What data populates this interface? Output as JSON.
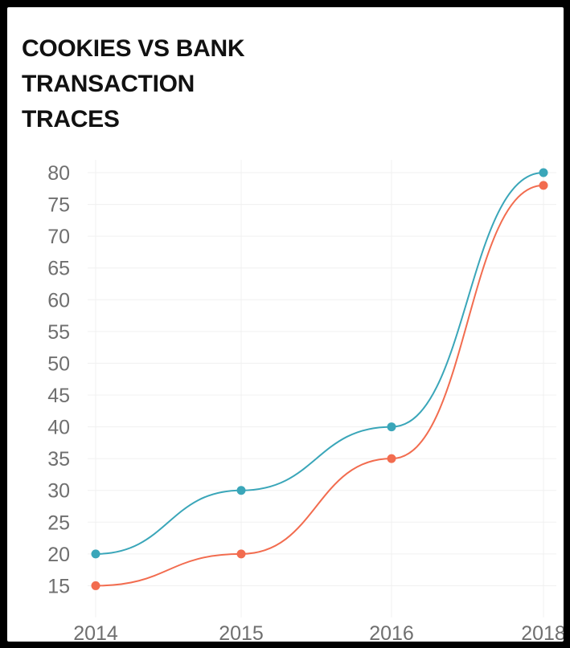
{
  "chart_data": {
    "type": "line",
    "title": [
      "COOKIES VS BANK",
      "TRANSACTION",
      "TRACES"
    ],
    "x": [
      "2014",
      "2015",
      "2016",
      "2018"
    ],
    "series": [
      {
        "color": "#3aa6b9",
        "values": [
          20,
          30,
          40,
          80
        ]
      },
      {
        "color": "#f26c4f",
        "values": [
          15,
          20,
          35,
          78
        ]
      }
    ],
    "yticks": [
      "15",
      "20",
      "25",
      "30",
      "35",
      "40",
      "45",
      "50",
      "55",
      "60",
      "65",
      "70",
      "75",
      "80"
    ],
    "ylim": [
      10,
      80
    ],
    "curve": "smooth",
    "grid": true,
    "legend": "none"
  }
}
